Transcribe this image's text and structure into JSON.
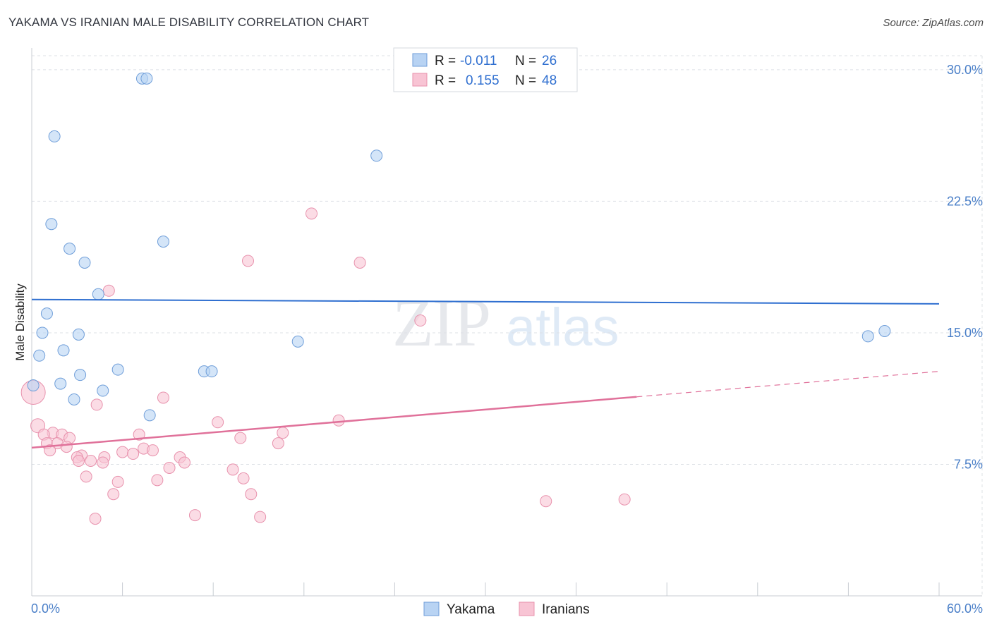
{
  "title": "YAKAMA VS IRANIAN MALE DISABILITY CORRELATION CHART",
  "source": "Source: ZipAtlas.com",
  "watermark": {
    "zip": "ZIP",
    "atlas": "atlas"
  },
  "colors": {
    "yakama_fill": "#b8d3f3",
    "yakama_stroke": "#6f9ed9",
    "yakama_line": "#2f6fd0",
    "iranian_fill": "#f8c4d4",
    "iranian_stroke": "#e892ad",
    "iranian_line": "#e0719a",
    "grid": "#dde0e6",
    "tick_text": "#4a7fc8"
  },
  "legend": {
    "rows": [
      {
        "r_label": "R =",
        "r_value": "-0.011",
        "n_label": "N =",
        "n_value": "26"
      },
      {
        "r_label": "R =",
        "r_value": "0.155",
        "n_label": "N =",
        "n_value": "48"
      }
    ]
  },
  "bottom_legend": [
    "Yakama",
    "Iranians"
  ],
  "chart_data": {
    "type": "scatter",
    "title": "YAKAMA VS IRANIAN MALE DISABILITY CORRELATION CHART",
    "xlabel": "",
    "ylabel": "Male Disability",
    "xlim": [
      0,
      60
    ],
    "ylim": [
      0,
      30.8
    ],
    "x_tick_labels": [
      "0.0%",
      "60.0%"
    ],
    "y_ticks": [
      7.5,
      15.0,
      22.5,
      30.0
    ],
    "y_tick_labels": [
      "7.5%",
      "15.0%",
      "22.5%",
      "30.0%"
    ],
    "x_minor_ticks": [
      0,
      6,
      12,
      18,
      24,
      30,
      36,
      42,
      48,
      54,
      60
    ],
    "series": [
      {
        "name": "Yakama",
        "R": -0.011,
        "N": 26,
        "trend": {
          "x": [
            0,
            60
          ],
          "y": [
            16.9,
            16.65
          ],
          "dashed_from": null
        },
        "points": [
          {
            "x": 7.3,
            "y": 29.5
          },
          {
            "x": 7.6,
            "y": 29.5
          },
          {
            "x": 1.5,
            "y": 26.2
          },
          {
            "x": 22.8,
            "y": 25.1
          },
          {
            "x": 1.3,
            "y": 21.2
          },
          {
            "x": 8.7,
            "y": 20.2
          },
          {
            "x": 2.5,
            "y": 19.8
          },
          {
            "x": 3.5,
            "y": 19.0
          },
          {
            "x": 4.4,
            "y": 17.2
          },
          {
            "x": 1.0,
            "y": 16.1
          },
          {
            "x": 0.7,
            "y": 15.0
          },
          {
            "x": 3.1,
            "y": 14.9
          },
          {
            "x": 17.6,
            "y": 14.5
          },
          {
            "x": 55.3,
            "y": 14.8
          },
          {
            "x": 56.4,
            "y": 15.1
          },
          {
            "x": 2.1,
            "y": 14.0
          },
          {
            "x": 0.5,
            "y": 13.7
          },
          {
            "x": 5.7,
            "y": 12.9
          },
          {
            "x": 11.4,
            "y": 12.8
          },
          {
            "x": 11.9,
            "y": 12.8
          },
          {
            "x": 3.2,
            "y": 12.6
          },
          {
            "x": 1.9,
            "y": 12.1
          },
          {
            "x": 0.1,
            "y": 12.0
          },
          {
            "x": 4.7,
            "y": 11.7
          },
          {
            "x": 2.8,
            "y": 11.2
          },
          {
            "x": 7.8,
            "y": 10.3
          }
        ]
      },
      {
        "name": "Iranians",
        "R": 0.155,
        "N": 48,
        "trend": {
          "x": [
            0,
            60
          ],
          "y": [
            8.45,
            12.8
          ],
          "dashed_from": 40
        },
        "points": [
          {
            "x": 18.5,
            "y": 21.8
          },
          {
            "x": 14.3,
            "y": 19.1
          },
          {
            "x": 21.7,
            "y": 19.0
          },
          {
            "x": 5.1,
            "y": 17.4
          },
          {
            "x": 25.7,
            "y": 15.7
          },
          {
            "x": 0.1,
            "y": 11.6
          },
          {
            "x": 8.7,
            "y": 11.3
          },
          {
            "x": 4.3,
            "y": 10.9
          },
          {
            "x": 20.3,
            "y": 10.0
          },
          {
            "x": 12.3,
            "y": 9.9
          },
          {
            "x": 0.4,
            "y": 9.7
          },
          {
            "x": 16.6,
            "y": 9.3
          },
          {
            "x": 1.4,
            "y": 9.3
          },
          {
            "x": 7.1,
            "y": 9.2
          },
          {
            "x": 0.8,
            "y": 9.2
          },
          {
            "x": 2.0,
            "y": 9.2
          },
          {
            "x": 2.5,
            "y": 9.0
          },
          {
            "x": 13.8,
            "y": 9.0
          },
          {
            "x": 1.0,
            "y": 8.7
          },
          {
            "x": 1.7,
            "y": 8.7
          },
          {
            "x": 2.3,
            "y": 8.5
          },
          {
            "x": 16.3,
            "y": 8.7
          },
          {
            "x": 7.4,
            "y": 8.4
          },
          {
            "x": 1.2,
            "y": 8.3
          },
          {
            "x": 8.0,
            "y": 8.3
          },
          {
            "x": 6.0,
            "y": 8.2
          },
          {
            "x": 6.7,
            "y": 8.1
          },
          {
            "x": 3.3,
            "y": 8.0
          },
          {
            "x": 3.0,
            "y": 7.9
          },
          {
            "x": 4.8,
            "y": 7.9
          },
          {
            "x": 9.8,
            "y": 7.9
          },
          {
            "x": 3.9,
            "y": 7.7
          },
          {
            "x": 3.1,
            "y": 7.7
          },
          {
            "x": 4.7,
            "y": 7.6
          },
          {
            "x": 10.1,
            "y": 7.6
          },
          {
            "x": 9.1,
            "y": 7.3
          },
          {
            "x": 13.3,
            "y": 7.2
          },
          {
            "x": 3.6,
            "y": 6.8
          },
          {
            "x": 14.0,
            "y": 6.7
          },
          {
            "x": 5.7,
            "y": 6.5
          },
          {
            "x": 8.3,
            "y": 6.6
          },
          {
            "x": 14.5,
            "y": 5.8
          },
          {
            "x": 5.4,
            "y": 5.8
          },
          {
            "x": 39.2,
            "y": 5.5
          },
          {
            "x": 34.0,
            "y": 5.4
          },
          {
            "x": 10.8,
            "y": 4.6
          },
          {
            "x": 15.1,
            "y": 4.5
          },
          {
            "x": 4.2,
            "y": 4.4
          }
        ]
      }
    ]
  }
}
